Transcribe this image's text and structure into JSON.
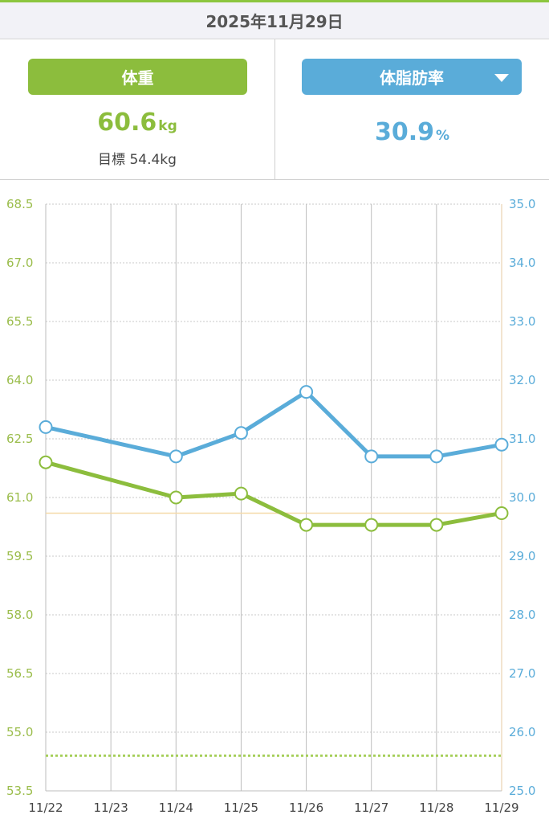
{
  "header": {
    "date": "2025年11月29日"
  },
  "weight_panel": {
    "label": "体重",
    "value": "60.6",
    "unit": "kg",
    "goal_text": "目標 54.4kg"
  },
  "fat_panel": {
    "label": "体脂肪率",
    "value": "30.9",
    "unit": "%",
    "dropdown_icon": "caret-down-icon"
  },
  "colors": {
    "weight": "#8cbd3d",
    "fat": "#5aacd9",
    "goal_line": "#a6cf5a",
    "current_line": "#f5d9a8"
  },
  "chart_data": {
    "type": "line",
    "categories": [
      "11/22",
      "11/23",
      "11/24",
      "11/25",
      "11/26",
      "11/27",
      "11/28",
      "11/29"
    ],
    "series": [
      {
        "values": [
          61.9,
          null,
          61.0,
          61.1,
          60.3,
          60.3,
          60.3,
          60.6
        ],
        "axis": "left"
      },
      {
        "values": [
          31.2,
          null,
          30.7,
          31.1,
          31.8,
          30.7,
          30.7,
          30.9
        ],
        "axis": "right"
      }
    ],
    "left_axis": {
      "ticks": [
        "68.5",
        "67.0",
        "65.5",
        "64.0",
        "62.5",
        "61.0",
        "59.5",
        "58.0",
        "56.5",
        "55.0",
        "53.5"
      ],
      "ylim": [
        53.5,
        68.5
      ]
    },
    "right_axis": {
      "ticks": [
        "35.0",
        "34.0",
        "33.0",
        "32.0",
        "31.0",
        "30.0",
        "29.0",
        "28.0",
        "27.0",
        "26.0",
        "25.0"
      ],
      "ylim": [
        25.0,
        35.0
      ]
    },
    "reference_lines": [
      {
        "value": 54.4,
        "axis": "left",
        "style": "dotted"
      },
      {
        "value": 60.6,
        "axis": "left",
        "style": "solid"
      }
    ],
    "grid": true
  }
}
